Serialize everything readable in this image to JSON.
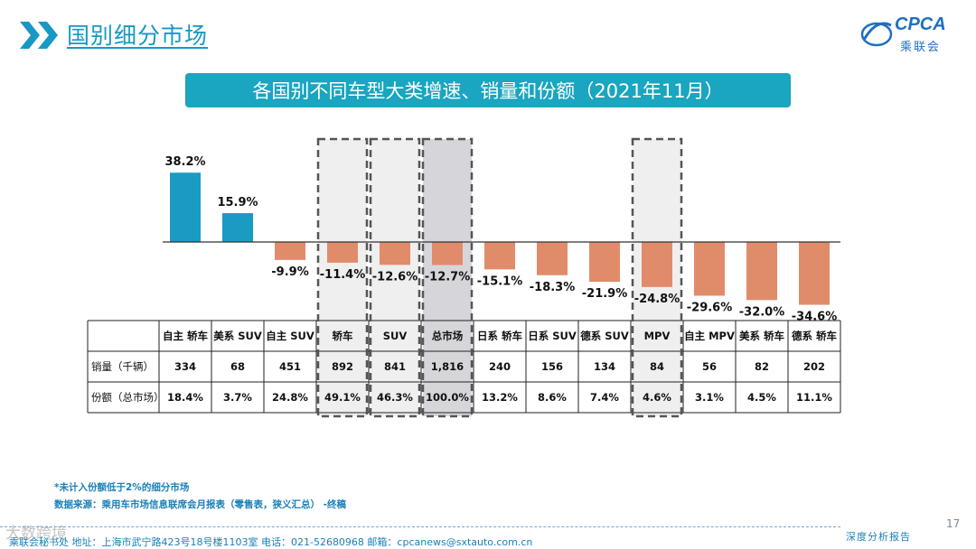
{
  "header": {
    "title": "国别细分市场",
    "logo_text": "CPCA",
    "logo_sub": "乘联会"
  },
  "banner": {
    "title": "各国别不同车型大类增速、销量和份额（2021年11月）"
  },
  "chart_data": {
    "type": "bar",
    "categories": [
      "自主 轿车",
      "美系 SUV",
      "自主 SUV",
      "轿车",
      "SUV",
      "总市场",
      "日系 轿车",
      "日系 SUV",
      "德系 SUV",
      "MPV",
      "自主 MPV",
      "美系 轿车",
      "德系 轿车"
    ],
    "values": [
      38.2,
      15.9,
      -9.9,
      -11.4,
      -12.6,
      -12.7,
      -15.1,
      -18.3,
      -21.9,
      -24.8,
      -29.6,
      -32.0,
      -34.6
    ],
    "value_labels": [
      "38.2%",
      "15.9%",
      "-9.9%",
      "-11.4%",
      "-12.6%",
      "-12.7%",
      "-15.1%",
      "-18.3%",
      "-21.9%",
      "-24.8%",
      "-29.6%",
      "-32.0%",
      "-34.6%"
    ],
    "unit": "%",
    "colors": {
      "positive": "#1a9bc4",
      "negative": "#e08c6a"
    },
    "highlighted": [
      "轿车",
      "SUV",
      "总市场",
      "MPV"
    ],
    "shaded": [
      "总市场"
    ],
    "table": {
      "rows": [
        {
          "label": "销量（千辆）",
          "values": [
            "334",
            "68",
            "451",
            "892",
            "841",
            "1,816",
            "240",
            "156",
            "134",
            "84",
            "56",
            "82",
            "202"
          ]
        },
        {
          "label": "份额（总市场）",
          "values": [
            "18.4%",
            "3.7%",
            "24.8%",
            "49.1%",
            "46.3%",
            "100.0%",
            "13.2%",
            "8.6%",
            "7.4%",
            "4.6%",
            "3.1%",
            "4.5%",
            "11.1%"
          ]
        }
      ]
    }
  },
  "footer": {
    "note": "*未计入份额低于2%的细分市场",
    "source": "数据来源：乘用车市场信息联席会月报表（零售表，狭义汇总） -终稿",
    "address": "乘联会秘书处   地址：上海市武宁路423号18号楼1103室  电话：021-52680968   邮箱：cpcanews@sxtauto.com.cn",
    "report": "深度分析报告",
    "page": "17",
    "watermark": "大数跨境"
  }
}
